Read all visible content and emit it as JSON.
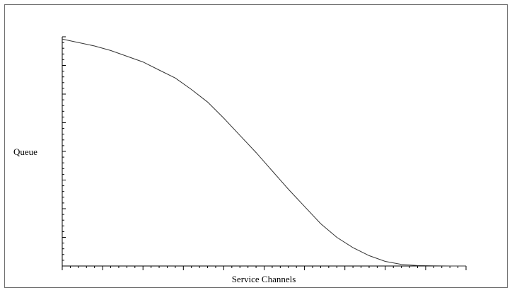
{
  "chart_data": {
    "type": "line",
    "title": "",
    "xlabel": "Service Channels",
    "ylabel": "Queue",
    "xlim": [
      0,
      25
    ],
    "ylim": [
      0,
      100
    ],
    "x_ticks_shown": true,
    "x_tick_labels": [],
    "y_tick_labels": [],
    "grid": false,
    "legend": "none",
    "series": [
      {
        "x": [
          0,
          1,
          2,
          3,
          4,
          5,
          6,
          7,
          8,
          9,
          10,
          11,
          12,
          13,
          14,
          15,
          16,
          17,
          18,
          19,
          20,
          21,
          22,
          23,
          24,
          25
        ],
        "y": [
          99,
          97.5,
          96,
          94,
          91.5,
          89,
          85.5,
          82,
          77,
          71.5,
          64.5,
          57,
          49.5,
          41.5,
          33.5,
          26,
          18.5,
          12.5,
          8,
          4.5,
          2,
          0.7,
          0.2,
          0.05,
          0.01,
          0
        ]
      }
    ],
    "line_color": "#333333"
  }
}
